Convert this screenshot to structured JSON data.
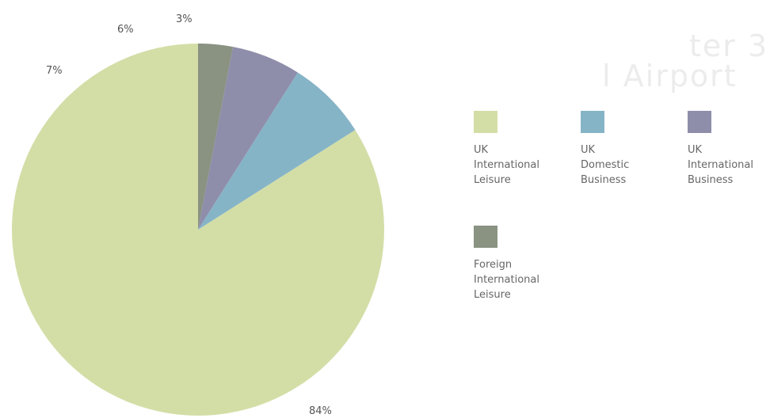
{
  "chart_data": {
    "type": "pie",
    "slices": [
      {
        "label": "UK\nInternational\nLeisure",
        "value": 84,
        "value_label": "84%",
        "color": "#d3dea7"
      },
      {
        "label": "UK\nDomestic\nBusiness",
        "value": 7,
        "value_label": "7%",
        "color": "#86b4c7"
      },
      {
        "label": "UK\nInternational\nBusiness",
        "value": 6,
        "value_label": "6%",
        "color": "#8e8eab"
      },
      {
        "label": "Foreign\nInternational\nLeisure",
        "value": 3,
        "value_label": "3%",
        "color": "#8a9282"
      }
    ],
    "start_angle_deg": 0,
    "direction": "counterclockwise",
    "legend_placement": "right"
  }
}
